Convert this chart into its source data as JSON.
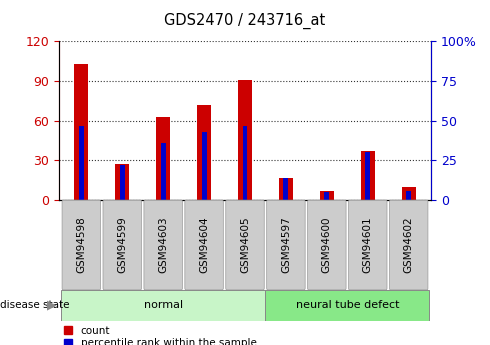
{
  "title": "GDS2470 / 243716_at",
  "samples": [
    "GSM94598",
    "GSM94599",
    "GSM94603",
    "GSM94604",
    "GSM94605",
    "GSM94597",
    "GSM94600",
    "GSM94601",
    "GSM94602"
  ],
  "count_values": [
    103,
    27,
    63,
    72,
    91,
    17,
    7,
    37,
    10
  ],
  "percentile_values": [
    47,
    22,
    36,
    43,
    47,
    14,
    5,
    30,
    6
  ],
  "groups": [
    {
      "label": "normal",
      "start": 0,
      "end": 5,
      "color": "#c8f5c8"
    },
    {
      "label": "neural tube defect",
      "start": 5,
      "end": 9,
      "color": "#88e888"
    }
  ],
  "left_ylim": [
    0,
    120
  ],
  "left_yticks": [
    0,
    30,
    60,
    90,
    120
  ],
  "right_ylim": [
    0,
    100
  ],
  "right_yticks": [
    0,
    25,
    50,
    75,
    100
  ],
  "right_yticklabels": [
    "0",
    "25",
    "50",
    "75",
    "100%"
  ],
  "bar_color_red": "#cc0000",
  "bar_color_blue": "#0000cc",
  "bar_width": 0.35,
  "blue_bar_width": 0.12,
  "legend_count_label": "count",
  "legend_percentile_label": "percentile rank within the sample",
  "disease_state_label": "disease state",
  "left_axis_color": "#cc0000",
  "right_axis_color": "#0000cc",
  "grid_color": "#000000",
  "xtick_bg": "#cccccc",
  "plot_bg": "#ffffff"
}
